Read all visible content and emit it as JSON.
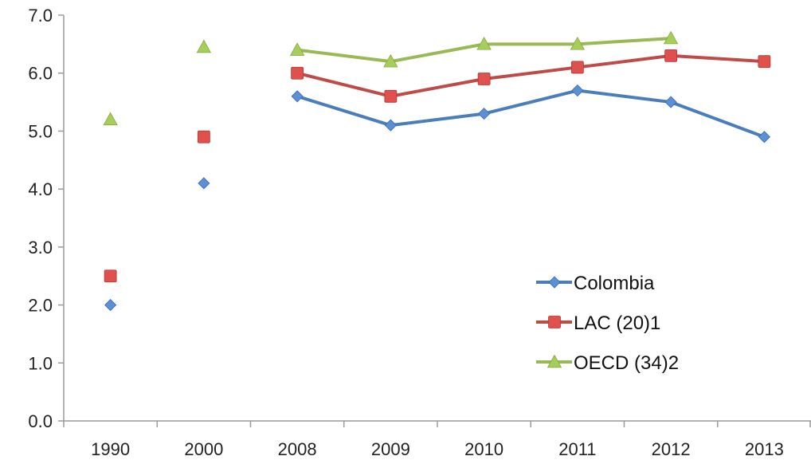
{
  "chart_data": {
    "type": "line",
    "title": "",
    "xlabel": "",
    "ylabel": "",
    "categories": [
      "1990",
      "2000",
      "2008",
      "2009",
      "2010",
      "2011",
      "2012",
      "2013"
    ],
    "ylim": [
      0,
      7
    ],
    "yticks": [
      "0.0",
      "1.0",
      "2.0",
      "3.0",
      "4.0",
      "5.0",
      "6.0",
      "7.0"
    ],
    "grid": false,
    "legend_position": "lower-right",
    "series": [
      {
        "name": "Colombia",
        "marker": "diamond",
        "color": "#4a7ebb",
        "marker_color": "#5b8fd6",
        "values": [
          2.0,
          4.1,
          5.6,
          5.1,
          5.3,
          5.7,
          5.5,
          4.9
        ]
      },
      {
        "name": "LAC (20)1",
        "marker": "square",
        "color": "#be4b48",
        "marker_color": "#e0504c",
        "values": [
          2.5,
          4.9,
          6.0,
          5.6,
          5.9,
          6.1,
          6.3,
          6.2
        ]
      },
      {
        "name": "OECD (34)2",
        "marker": "triangle",
        "color": "#98b954",
        "marker_color": "#a6cf5a",
        "values": [
          5.2,
          6.45,
          6.4,
          6.2,
          6.5,
          6.5,
          6.6,
          null
        ]
      }
    ],
    "connected_from_index": 2
  }
}
